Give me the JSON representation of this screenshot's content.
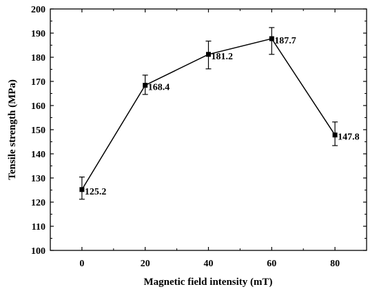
{
  "chart_data": {
    "type": "line",
    "title": "",
    "xlabel": "Magnetic field intensity (mT)",
    "ylabel": "Tensile strength (MPa)",
    "xlim": [
      -10,
      90
    ],
    "ylim": [
      100,
      200
    ],
    "xticks": [
      0,
      20,
      40,
      60,
      80
    ],
    "yticks": [
      100,
      110,
      120,
      130,
      140,
      150,
      160,
      170,
      180,
      190,
      200
    ],
    "grid": false,
    "legend": "none",
    "series": [
      {
        "x": [
          0,
          20,
          40,
          60,
          80
        ],
        "values": [
          125.2,
          168.4,
          181.2,
          187.7,
          147.8
        ],
        "error_low": [
          121.2,
          164.6,
          175.2,
          181.2,
          143.4
        ],
        "error_high": [
          130.4,
          172.6,
          186.7,
          192.3,
          153.2
        ],
        "data_labels": [
          "125.2",
          "168.4",
          "181.2",
          "187.7",
          "147.8"
        ],
        "marker": "square",
        "color": "#000000"
      }
    ]
  }
}
